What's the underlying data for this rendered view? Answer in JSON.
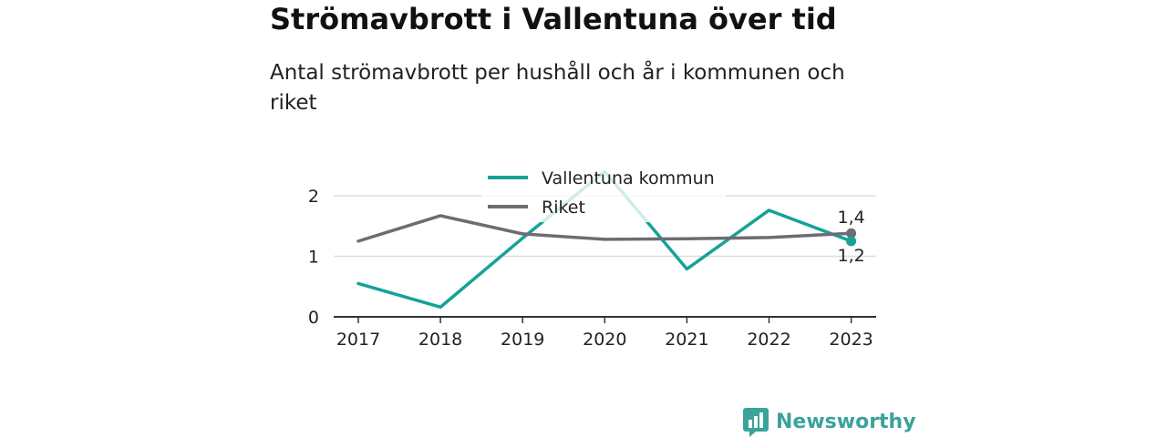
{
  "title": "Strömavbrott i Vallentuna över tid",
  "subtitle": "Antal strömavbrott per hushåll och år i kommunen och riket",
  "brand": "Newsworthy",
  "colors": {
    "vallentuna": "#16a298",
    "riket": "#6e6c72",
    "axis": "#333333",
    "grid": "#dddddd",
    "brand": "#3aa39a"
  },
  "chart_data": {
    "type": "line",
    "x": [
      "2017",
      "2018",
      "2019",
      "2020",
      "2021",
      "2022",
      "2023"
    ],
    "series": [
      {
        "name": "Vallentuna kommun",
        "values": [
          0.55,
          0.16,
          1.3,
          2.4,
          0.79,
          1.76,
          1.25
        ],
        "end_label": "1,2"
      },
      {
        "name": "Riket",
        "values": [
          1.25,
          1.67,
          1.37,
          1.28,
          1.29,
          1.31,
          1.38
        ],
        "end_label": "1,4"
      }
    ],
    "yticks": [
      "0",
      "1",
      "2"
    ],
    "ylim": [
      0,
      2.5
    ],
    "grid": true,
    "legend_position": "top-center"
  }
}
